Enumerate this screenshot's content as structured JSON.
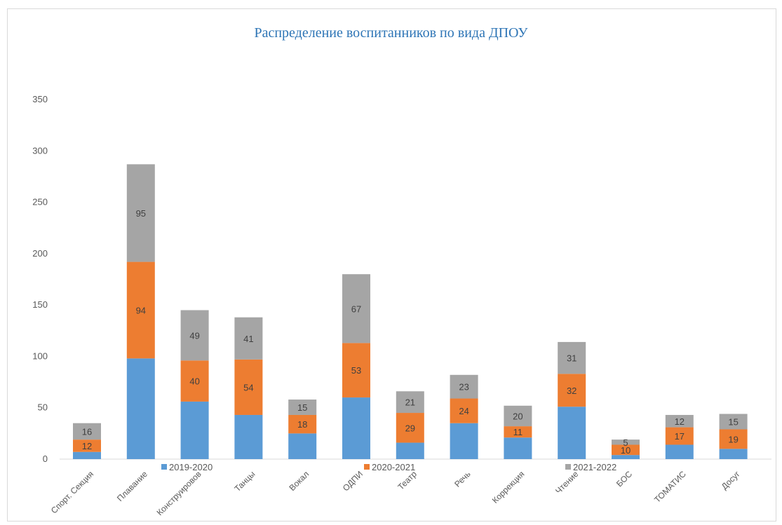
{
  "chart_data": {
    "type": "bar",
    "stacked": true,
    "title": "Распределение воспитанников по вида ДПОУ",
    "categories": [
      "Спорт. Секция",
      "Плавание",
      "Конструировов",
      "Танцы",
      "Вокал",
      "ОДПИ",
      "Театр",
      "Речь",
      "Коррекция",
      "Чтение",
      "БОС",
      "ТОМАТИС",
      "Досуг"
    ],
    "series": [
      {
        "name": "2019-2020",
        "color": "#5b9bd5",
        "values": [
          7,
          98,
          56,
          43,
          25,
          60,
          16,
          35,
          21,
          51,
          4,
          14,
          10
        ],
        "labels": [
          "",
          "",
          "",
          "",
          "",
          "",
          "",
          "",
          "",
          "",
          "",
          "",
          ""
        ]
      },
      {
        "name": "2020-2021",
        "color": "#ed7d31",
        "values": [
          12,
          94,
          40,
          54,
          18,
          53,
          29,
          24,
          11,
          32,
          10,
          17,
          19
        ],
        "labels": [
          "12",
          "94",
          "40",
          "54",
          "18",
          "53",
          "29",
          "24",
          "11",
          "32",
          "10",
          "17",
          "19"
        ]
      },
      {
        "name": "2021-2022",
        "color": "#a5a5a5",
        "values": [
          16,
          95,
          49,
          41,
          15,
          67,
          21,
          23,
          20,
          31,
          5,
          12,
          15
        ],
        "labels": [
          "16",
          "95",
          "49",
          "41",
          "15",
          "67",
          "21",
          "23",
          "20",
          "31",
          "5",
          "12",
          "15"
        ]
      }
    ],
    "yticks": [
      "0",
      "50",
      "100",
      "150",
      "200",
      "250",
      "300",
      "350"
    ],
    "ylim": [
      0,
      350
    ],
    "legend_position": "bottom",
    "grid": false
  }
}
